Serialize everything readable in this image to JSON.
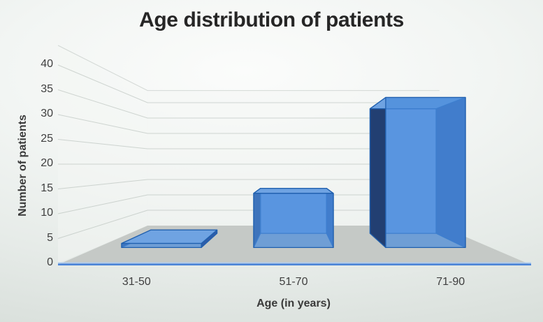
{
  "title": "Age distribution of patients",
  "y_axis": {
    "title": "Number of patients",
    "ticks": [
      "0",
      "5",
      "10",
      "15",
      "20",
      "25",
      "30",
      "35",
      "40"
    ]
  },
  "x_axis": {
    "title": "Age (in years)",
    "categories": [
      "31-50",
      "51-70",
      "71-90"
    ]
  },
  "chart_data": {
    "type": "bar",
    "style": "3d-perspective-column",
    "title": "Age distribution of patients",
    "categories": [
      "31-50",
      "51-70",
      "71-90"
    ],
    "values": [
      1,
      13,
      36
    ],
    "xlabel": "Age (in years)",
    "ylabel": "Number of patients",
    "ylim": [
      0,
      40
    ],
    "ytick_step": 5,
    "grid": true,
    "legend": false,
    "colors": {
      "bar_front": "rgba(74,140,219,0.70)",
      "bar_top": "#6FA3E2",
      "bar_back": "#7CABE9",
      "bar_side_dark": "#223F72",
      "bar_side": "#2E5CA8",
      "bar_border": "#2160AE",
      "baseline": "#4A84D8",
      "baseline_highlight": "#AECBEE",
      "floor": "#C5C9C6",
      "wall": "#F4F6F5",
      "gridline": "#A8B2AC",
      "tick_text": "#3F3F3F",
      "title_text": "#262626"
    }
  }
}
